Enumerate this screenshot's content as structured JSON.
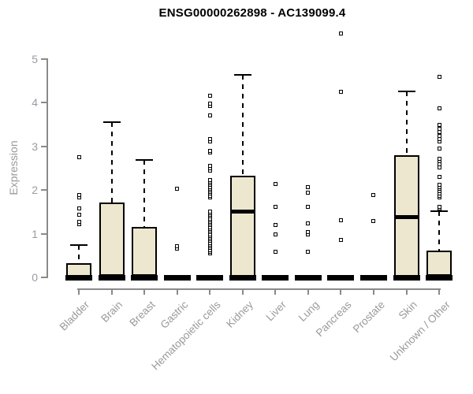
{
  "chart_data": {
    "type": "boxplot",
    "title": "ENSG00000262898 - AC139099.4",
    "ylabel": "Expression",
    "xlabel": "",
    "y_ticks": [
      0,
      1,
      2,
      3,
      4,
      5
    ],
    "ylim": [
      0,
      5.7
    ],
    "grid": false,
    "legend": "none",
    "colors": {
      "box_fill": "#ede7cf",
      "box_stroke": "#000000",
      "axis": "#8a8a8a",
      "tick_text": "#9a9a9a",
      "title_text": "#000000"
    },
    "categories": [
      {
        "label": "Bladder",
        "collapsed": false,
        "q1": 0,
        "median": 0.02,
        "q3": 0.33,
        "whisker_low": 0,
        "whisker_high": 0.73,
        "outliers": [
          1.21,
          1.27,
          1.43,
          1.57,
          1.82,
          1.88,
          2.75
        ]
      },
      {
        "label": "Brain",
        "collapsed": false,
        "q1": 0,
        "median": 0.03,
        "q3": 1.72,
        "whisker_low": 0,
        "whisker_high": 3.55,
        "outliers": []
      },
      {
        "label": "Breast",
        "collapsed": false,
        "q1": 0,
        "median": 0.03,
        "q3": 1.15,
        "whisker_low": 0,
        "whisker_high": 2.68,
        "outliers": []
      },
      {
        "label": "Gastric",
        "collapsed": true,
        "median": 0,
        "outliers": [
          0.66,
          0.72,
          2.03
        ]
      },
      {
        "label": "Hematopoietic cells",
        "collapsed": true,
        "median": 0,
        "outliers": [
          0.55,
          0.59,
          0.63,
          0.67,
          0.71,
          0.75,
          0.79,
          0.83,
          0.87,
          0.91,
          0.95,
          0.99,
          1.03,
          1.07,
          1.11,
          1.15,
          1.19,
          1.23,
          1.27,
          1.31,
          1.35,
          1.39,
          1.43,
          1.47,
          1.51,
          1.83,
          1.87,
          1.91,
          1.95,
          1.99,
          2.03,
          2.07,
          2.11,
          2.15,
          2.19,
          2.23,
          2.44,
          2.5,
          2.55,
          2.86,
          2.9,
          3.11,
          3.17,
          3.7,
          3.92,
          3.98,
          4.15
        ]
      },
      {
        "label": "Kidney",
        "collapsed": false,
        "q1": 0,
        "median": 1.52,
        "q3": 2.33,
        "whisker_low": 0,
        "whisker_high": 4.63,
        "outliers": []
      },
      {
        "label": "Liver",
        "collapsed": true,
        "median": 0,
        "outliers": [
          0.59,
          0.99,
          1.19,
          1.62,
          2.14
        ]
      },
      {
        "label": "Lung",
        "collapsed": true,
        "median": 0,
        "outliers": [
          0.59,
          0.99,
          1.03,
          1.24,
          1.62,
          1.93,
          2.07
        ]
      },
      {
        "label": "Pancreas",
        "collapsed": true,
        "median": 0,
        "outliers": [
          0.85,
          1.31,
          4.24,
          5.57
        ]
      },
      {
        "label": "Prostate",
        "collapsed": true,
        "median": 0,
        "outliers": [
          1.28,
          1.89
        ]
      },
      {
        "label": "Skin",
        "collapsed": false,
        "q1": 0,
        "median": 1.38,
        "q3": 2.8,
        "whisker_low": 0,
        "whisker_high": 4.25,
        "outliers": []
      },
      {
        "label": "Unknown / Other",
        "collapsed": false,
        "q1": 0,
        "median": 0.03,
        "q3": 0.61,
        "whisker_low": 0,
        "whisker_high": 1.52,
        "outliers": [
          1.57,
          1.62,
          1.82,
          1.87,
          1.92,
          1.97,
          2.02,
          2.07,
          2.12,
          2.3,
          2.52,
          2.58,
          2.65,
          2.72,
          2.95,
          3.1,
          3.16,
          3.24,
          3.32,
          3.4,
          3.48,
          3.87,
          4.59
        ]
      }
    ]
  }
}
